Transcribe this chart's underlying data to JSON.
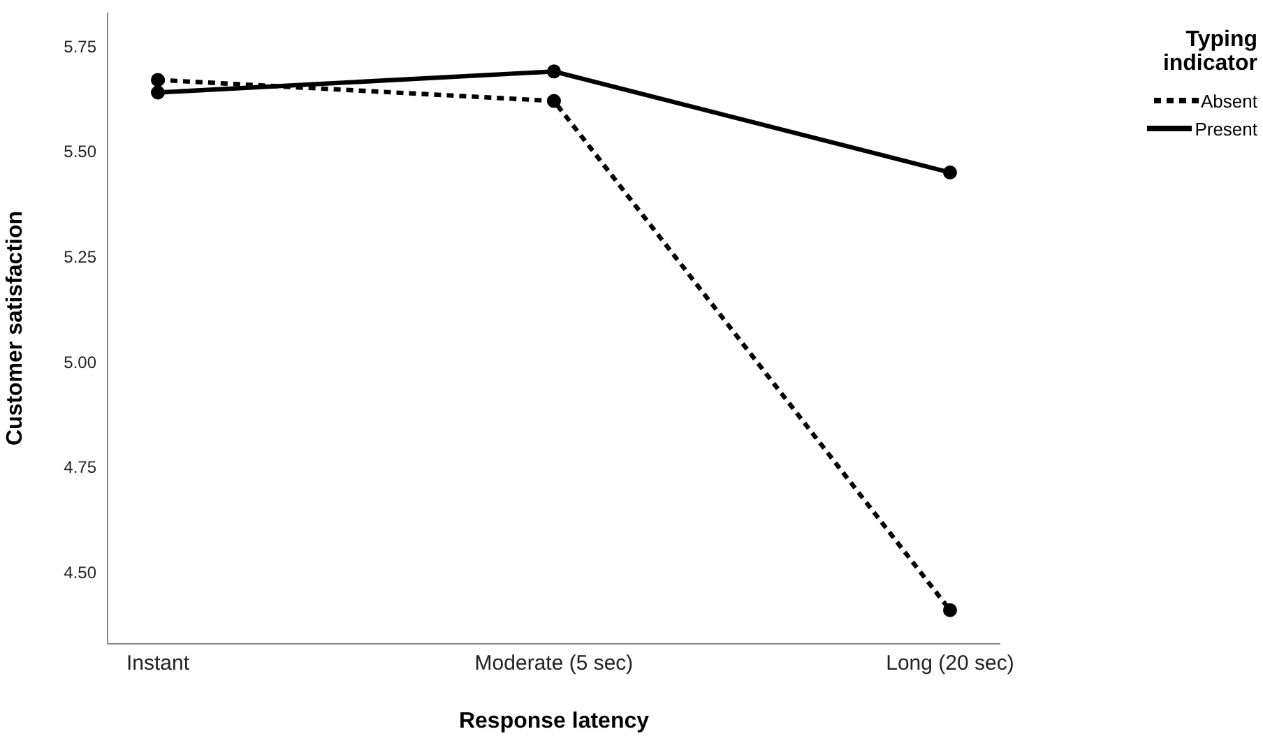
{
  "chart_data": {
    "type": "line",
    "xlabel": "Response latency",
    "ylabel": "Customer satisfaction",
    "legend_title": "Typing indicator",
    "categories": [
      "Instant",
      "Moderate (5 sec)",
      "Long (20 sec)"
    ],
    "series": [
      {
        "name": "Absent",
        "color": "#000000",
        "values": [
          5.67,
          5.62,
          4.41
        ],
        "line_style": "dashed"
      },
      {
        "name": "Present",
        "color": "#000000",
        "values": [
          5.64,
          5.69,
          5.45
        ],
        "line_style": "solid"
      }
    ],
    "ylim": [
      4.33,
      5.83
    ],
    "yticks": [
      {
        "value": 4.5,
        "label": "4.50"
      },
      4.75,
      {
        "value": 5,
        "label": "5.00"
      },
      5.25,
      {
        "value": 5.5,
        "label": "5.50"
      },
      5.75
    ],
    "grid": false,
    "legend": "top right",
    "marker": "circle"
  }
}
